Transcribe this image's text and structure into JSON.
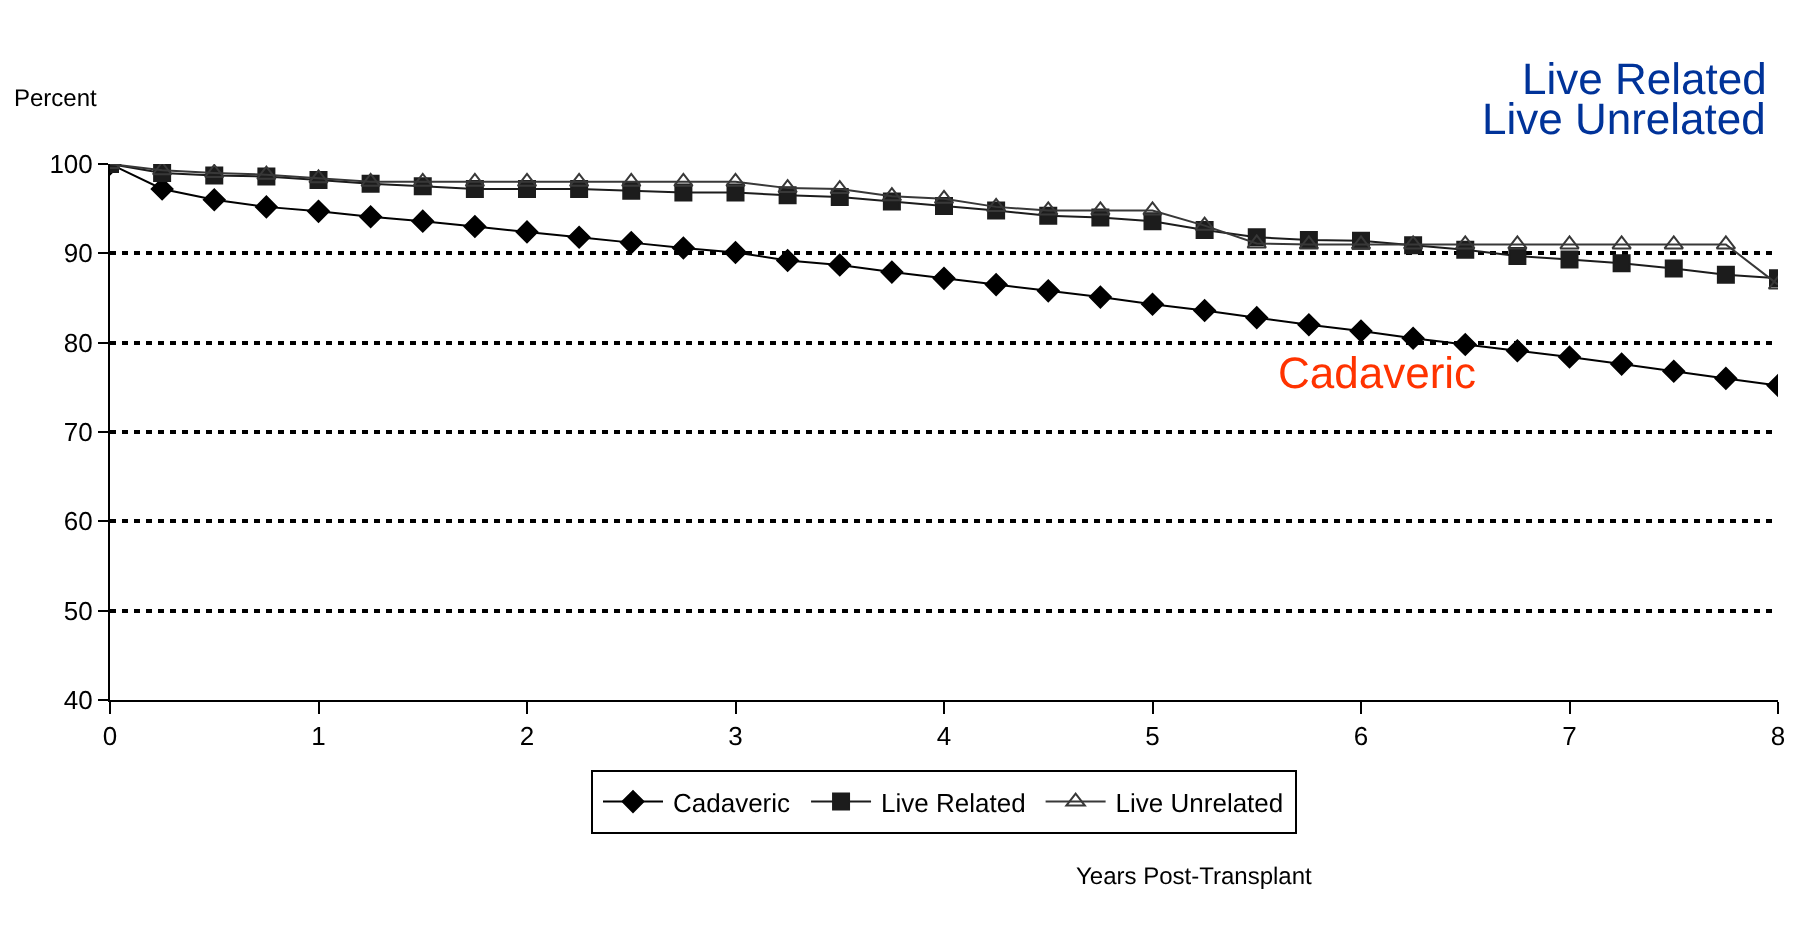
{
  "chart_data": {
    "type": "line",
    "ylabel": "Percent",
    "x": [
      0,
      0.25,
      0.5,
      0.75,
      1,
      1.25,
      1.5,
      1.75,
      2,
      2.25,
      2.5,
      2.75,
      3,
      3.25,
      3.5,
      3.75,
      4,
      4.25,
      4.5,
      4.75,
      5,
      5.25,
      5.5,
      5.75,
      6,
      6.25,
      6.5,
      6.75,
      7,
      7.25,
      7.5,
      7.75,
      8
    ],
    "series": [
      {
        "name": "Cadaveric",
        "color": "#000000",
        "marker": "diamond",
        "values": [
          100,
          97.2,
          96,
          95.2,
          94.7,
          94.1,
          93.6,
          93,
          92.4,
          91.8,
          91.2,
          90.6,
          90.1,
          89.2,
          88.7,
          87.9,
          87.2,
          86.5,
          85.8,
          85.1,
          84.3,
          83.6,
          82.8,
          82,
          81.3,
          80.5,
          79.8,
          79.1,
          78.4,
          77.6,
          76.8,
          76,
          75.2
        ]
      },
      {
        "name": "Live Related",
        "color": "#1c1c1c",
        "marker": "square",
        "values": [
          100,
          99,
          98.7,
          98.6,
          98.2,
          97.8,
          97.5,
          97.2,
          97.2,
          97.2,
          97,
          96.8,
          96.8,
          96.5,
          96.3,
          95.8,
          95.3,
          94.8,
          94.2,
          94,
          93.6,
          92.6,
          91.8,
          91.5,
          91.4,
          90.9,
          90.4,
          89.7,
          89.3,
          88.9,
          88.3,
          87.6,
          87.2
        ]
      },
      {
        "name": "Live Unrelated",
        "color": "#383838",
        "marker": "triangle",
        "values": [
          100,
          99.3,
          99,
          98.8,
          98.4,
          98,
          98,
          98,
          98,
          98,
          98,
          98,
          98,
          97.3,
          97.2,
          96.4,
          96.1,
          95.2,
          94.8,
          94.8,
          94.8,
          93.1,
          91.1,
          91,
          91,
          91,
          91,
          91,
          91,
          91,
          91,
          91,
          86.5
        ]
      }
    ],
    "annotations": [
      "Live Related",
      "Live Unrelated",
      "Cadaveric",
      "Years Post-Transplant"
    ],
    "xlim": [
      0,
      8
    ],
    "xticks": [
      0,
      1,
      2,
      3,
      4,
      5,
      6,
      7,
      8
    ],
    "ylim": [
      40,
      100
    ],
    "yticks": [
      40,
      50,
      60,
      70,
      80,
      90,
      100
    ],
    "grid": "y",
    "legend": "bottom",
    "line_style": "solid"
  }
}
